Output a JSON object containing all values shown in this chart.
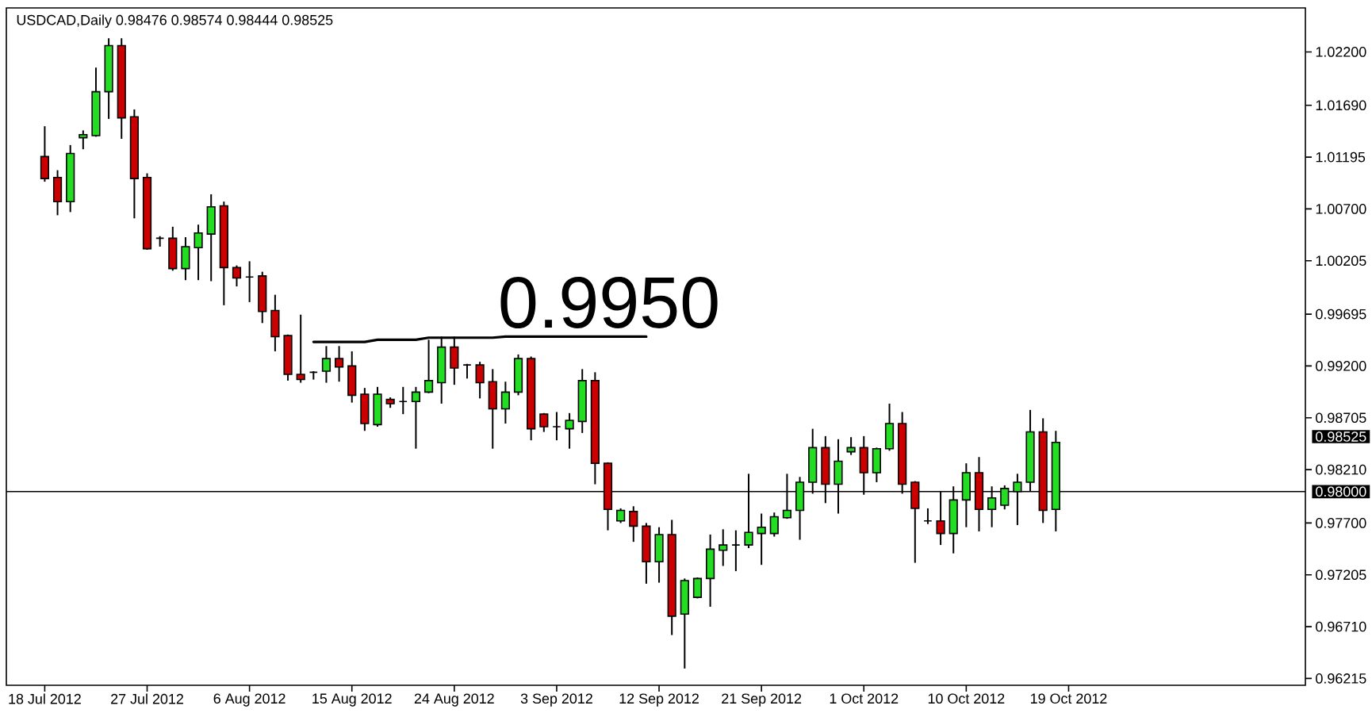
{
  "chart_data": {
    "type": "candlestick",
    "title": "USDCAD,Daily 0.98476 0.98574 0.98444 0.98525",
    "categories": [
      "18 Jul 2012",
      null,
      null,
      null,
      null,
      null,
      null,
      null,
      "27 Jul 2012",
      null,
      null,
      null,
      null,
      null,
      null,
      null,
      "6 Aug 2012",
      null,
      null,
      null,
      null,
      null,
      null,
      null,
      "15 Aug 2012",
      null,
      null,
      null,
      null,
      null,
      null,
      null,
      "24 Aug 2012",
      null,
      null,
      null,
      null,
      null,
      null,
      null,
      "3 Sep 2012",
      null,
      null,
      null,
      null,
      null,
      null,
      null,
      "12 Sep 2012",
      null,
      null,
      null,
      null,
      null,
      null,
      null,
      "21 Sep 2012",
      null,
      null,
      null,
      null,
      null,
      null,
      null,
      "1 Oct 2012",
      null,
      null,
      null,
      null,
      null,
      null,
      null,
      "10 Oct 2012",
      null,
      null,
      null,
      null,
      null,
      null,
      null,
      "19 Oct 2012",
      null,
      null,
      null,
      null,
      null,
      null,
      null,
      null,
      null,
      null,
      null,
      null,
      null,
      null,
      null,
      null,
      null,
      null
    ],
    "ohlc": [
      [
        1.012,
        1.0149,
        1.0096,
        1.0099
      ],
      [
        1.01,
        1.0107,
        1.0064,
        1.0077
      ],
      [
        1.0077,
        1.0131,
        1.0067,
        1.0123
      ],
      [
        1.0138,
        1.0145,
        1.0127,
        1.0141
      ],
      [
        1.014,
        1.0205,
        1.0139,
        1.0182
      ],
      [
        1.0182,
        1.0233,
        1.0156,
        1.0226
      ],
      [
        1.0226,
        1.0233,
        1.0137,
        1.0157
      ],
      [
        1.0158,
        1.0165,
        1.0061,
        1.0099
      ],
      [
        1.01,
        1.0104,
        1.0031,
        1.0032
      ],
      [
        1.0042,
        1.0044,
        1.0034,
        1.0042
      ],
      [
        1.0042,
        1.0053,
        1.0011,
        1.0013
      ],
      [
        1.0013,
        1.0043,
        1.0002,
        1.0034
      ],
      [
        1.0033,
        1.0055,
        1.0002,
        1.0047
      ],
      [
        1.0046,
        1.0084,
        1.0001,
        1.0072
      ],
      [
        1.0073,
        1.0077,
        0.9978,
        1.0014
      ],
      [
        1.0014,
        1.0016,
        0.9996,
        1.0004
      ],
      [
        1.0005,
        1.002,
        0.9981,
        1.0005
      ],
      [
        1.0006,
        1.001,
        0.9961,
        0.9972
      ],
      [
        0.9973,
        0.9988,
        0.9934,
        0.9948
      ],
      [
        0.9949,
        0.995,
        0.9906,
        0.9912
      ],
      [
        0.9912,
        0.9969,
        0.9904,
        0.9907
      ],
      [
        0.9914,
        0.9915,
        0.9907,
        0.9914
      ],
      [
        0.9915,
        0.9939,
        0.9904,
        0.9927
      ],
      [
        0.9927,
        0.9939,
        0.9905,
        0.9919
      ],
      [
        0.992,
        0.9934,
        0.9885,
        0.9892
      ],
      [
        0.9893,
        0.9899,
        0.9858,
        0.9865
      ],
      [
        0.9864,
        0.99,
        0.9862,
        0.9893
      ],
      [
        0.9888,
        0.989,
        0.988,
        0.9884
      ],
      [
        0.9886,
        0.99,
        0.9874,
        0.9886
      ],
      [
        0.9886,
        0.99,
        0.9841,
        0.9895
      ],
      [
        0.9895,
        0.9945,
        0.9894,
        0.9906
      ],
      [
        0.9904,
        0.9948,
        0.9884,
        0.9938
      ],
      [
        0.9938,
        0.9948,
        0.9902,
        0.9918
      ],
      [
        0.9921,
        0.9922,
        0.9908,
        0.9921
      ],
      [
        0.9921,
        0.9924,
        0.9889,
        0.9904
      ],
      [
        0.9905,
        0.9917,
        0.9841,
        0.9879
      ],
      [
        0.9879,
        0.9905,
        0.9865,
        0.9895
      ],
      [
        0.9895,
        0.9931,
        0.9892,
        0.9927
      ],
      [
        0.9927,
        0.9929,
        0.9849,
        0.986
      ],
      [
        0.9874,
        0.9875,
        0.9857,
        0.9862
      ],
      [
        0.9862,
        0.9876,
        0.9849,
        0.9862
      ],
      [
        0.986,
        0.9875,
        0.9841,
        0.9868
      ],
      [
        0.9867,
        0.9917,
        0.9856,
        0.9906
      ],
      [
        0.9906,
        0.9914,
        0.9807,
        0.9827
      ],
      [
        0.9827,
        0.9828,
        0.9763,
        0.9783
      ],
      [
        0.9772,
        0.9784,
        0.977,
        0.9782
      ],
      [
        0.9781,
        0.9786,
        0.9752,
        0.9767
      ],
      [
        0.9767,
        0.977,
        0.9712,
        0.9733
      ],
      [
        0.9733,
        0.9766,
        0.9713,
        0.9759
      ],
      [
        0.9759,
        0.9773,
        0.9663,
        0.9681
      ],
      [
        0.9683,
        0.9717,
        0.9631,
        0.9715
      ],
      [
        0.9699,
        0.9718,
        0.9698,
        0.9717
      ],
      [
        0.9717,
        0.9759,
        0.969,
        0.9745
      ],
      [
        0.9744,
        0.9764,
        0.9729,
        0.9749
      ],
      [
        0.9749,
        0.9763,
        0.9724,
        0.9749
      ],
      [
        0.9749,
        0.9817,
        0.9746,
        0.9761
      ],
      [
        0.976,
        0.9779,
        0.973,
        0.9766
      ],
      [
        0.976,
        0.978,
        0.9757,
        0.9776
      ],
      [
        0.9775,
        0.9817,
        0.9774,
        0.9782
      ],
      [
        0.9782,
        0.9814,
        0.9754,
        0.9809
      ],
      [
        0.9809,
        0.986,
        0.9798,
        0.9842
      ],
      [
        0.9842,
        0.9853,
        0.9789,
        0.9807
      ],
      [
        0.9807,
        0.985,
        0.9779,
        0.9829
      ],
      [
        0.9838,
        0.9852,
        0.9835,
        0.9842
      ],
      [
        0.9842,
        0.9853,
        0.9797,
        0.9818
      ],
      [
        0.9818,
        0.9842,
        0.9809,
        0.9841
      ],
      [
        0.9841,
        0.9884,
        0.9839,
        0.9865
      ],
      [
        0.9865,
        0.9876,
        0.9798,
        0.9807
      ],
      [
        0.9809,
        0.981,
        0.9732,
        0.9784
      ],
      [
        0.9772,
        0.9784,
        0.9769,
        0.9772
      ],
      [
        0.9772,
        0.98,
        0.9749,
        0.976
      ],
      [
        0.976,
        0.9805,
        0.9741,
        0.9792
      ],
      [
        0.9792,
        0.9827,
        0.9766,
        0.9818
      ],
      [
        0.9818,
        0.9833,
        0.9762,
        0.9783
      ],
      [
        0.9783,
        0.9805,
        0.9766,
        0.9794
      ],
      [
        0.9787,
        0.9806,
        0.9783,
        0.9803
      ],
      [
        0.98,
        0.9817,
        0.9768,
        0.9809
      ],
      [
        0.9809,
        0.9878,
        0.98,
        0.9857
      ],
      [
        0.9857,
        0.987,
        0.977,
        0.9782
      ],
      [
        0.9783,
        0.9858,
        0.9762,
        0.9847
      ],
      null,
      null,
      null,
      null,
      null,
      null,
      null,
      null,
      null,
      null,
      null,
      null,
      null,
      null,
      null,
      null,
      null,
      null,
      null
    ],
    "colors": [
      "#cc0000",
      "#cc0000",
      "#22dd22",
      "#22dd22",
      "#22dd22",
      "#22dd22",
      "#cc0000",
      "#cc0000",
      "#cc0000",
      "#000000",
      "#cc0000",
      "#22dd22",
      "#22dd22",
      "#22dd22",
      "#cc0000",
      "#cc0000",
      "#000000",
      "#cc0000",
      "#cc0000",
      "#cc0000",
      "#cc0000",
      "#000000",
      "#22dd22",
      "#cc0000",
      "#cc0000",
      "#cc0000",
      "#22dd22",
      "#cc0000",
      "#000000",
      "#22dd22",
      "#22dd22",
      "#22dd22",
      "#cc0000",
      "#000000",
      "#cc0000",
      "#cc0000",
      "#22dd22",
      "#22dd22",
      "#cc0000",
      "#cc0000",
      "#000000",
      "#22dd22",
      "#22dd22",
      "#cc0000",
      "#cc0000",
      "#22dd22",
      "#cc0000",
      "#cc0000",
      "#22dd22",
      "#cc0000",
      "#22dd22",
      "#22dd22",
      "#22dd22",
      "#22dd22",
      "#000000",
      "#22dd22",
      "#22dd22",
      "#22dd22",
      "#22dd22",
      "#22dd22",
      "#22dd22",
      "#cc0000",
      "#22dd22",
      "#22dd22",
      "#cc0000",
      "#22dd22",
      "#22dd22",
      "#cc0000",
      "#cc0000",
      "#000000",
      "#cc0000",
      "#22dd22",
      "#22dd22",
      "#cc0000",
      "#22dd22",
      "#22dd22",
      "#22dd22",
      "#22dd22",
      "#cc0000",
      "#22dd22",
      null,
      null,
      null,
      null,
      null,
      null,
      null,
      null,
      null,
      null,
      null,
      null,
      null,
      null,
      null,
      null,
      null,
      null,
      null
    ],
    "series": [
      {
        "type": "line",
        "color": "#000000",
        "values": [
          null,
          null,
          null,
          null,
          null,
          null,
          null,
          null,
          null,
          null,
          null,
          null,
          null,
          null,
          null,
          null,
          null,
          null,
          null,
          null,
          null,
          0.9943,
          0.9943,
          0.9943,
          0.9943,
          0.9943,
          0.9945,
          0.9945,
          0.9945,
          0.9945,
          0.9947,
          0.9947,
          0.9947,
          0.9947,
          0.9947,
          0.9947,
          0.9948,
          0.9948,
          0.9948,
          0.9948,
          0.9948,
          0.9948,
          0.9948,
          0.9948,
          0.9948,
          0.9948,
          0.9948,
          0.9948,
          null,
          null,
          null,
          null,
          null,
          null,
          null,
          null,
          null,
          null,
          null,
          null,
          null,
          null,
          null,
          null,
          null,
          null,
          null,
          null,
          null,
          null,
          null,
          null,
          null,
          null,
          null,
          null,
          null,
          null,
          null,
          null,
          null,
          null,
          null,
          null,
          null,
          null,
          null,
          null,
          null,
          null,
          null,
          null,
          null,
          null,
          null,
          null,
          null,
          null,
          null
        ]
      }
    ],
    "ylim": [
      0.9615,
      1.0262
    ],
    "yticks": [
      {
        "value": 1.022,
        "label": "1.02200"
      },
      {
        "value": 1.0169,
        "label": "1.01690"
      },
      {
        "value": 1.01195,
        "label": "1.01195"
      },
      {
        "value": 1.007,
        "label": "1.00700"
      },
      {
        "value": 1.00205,
        "label": "1.00205"
      },
      {
        "value": 0.99695,
        "label": "0.99695"
      },
      {
        "value": 0.992,
        "label": "0.99200"
      },
      {
        "value": 0.98705,
        "label": "0.98705"
      },
      {
        "value": 0.9821,
        "label": "0.98210"
      },
      {
        "value": 0.977,
        "label": "0.97700"
      },
      {
        "value": 0.97205,
        "label": "0.97205"
      },
      {
        "value": 0.9671,
        "label": "0.96710"
      },
      {
        "value": 0.96215,
        "label": "0.96215"
      }
    ],
    "ref_lines": [
      {
        "axis": "y",
        "value": 0.98,
        "label": "0.98000",
        "color": "#000000"
      }
    ],
    "annotations": [
      "0.9950",
      "0.98525"
    ]
  }
}
